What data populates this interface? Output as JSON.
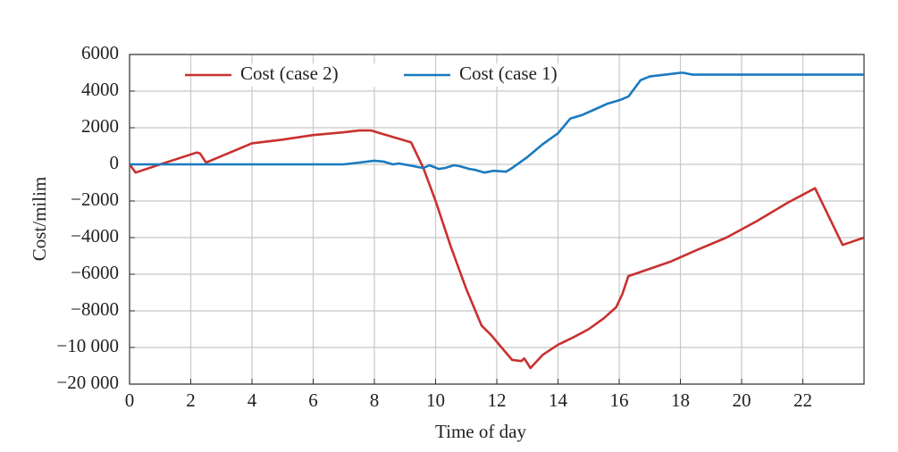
{
  "chart_data": {
    "type": "line",
    "xlabel": "Time of day",
    "ylabel": "Cost/milim",
    "xlim": [
      0,
      24
    ],
    "xticks": [
      0,
      2,
      4,
      6,
      8,
      10,
      12,
      14,
      16,
      18,
      20,
      22
    ],
    "ylim": [
      -20000,
      6000
    ],
    "yticks": [
      {
        "value": -20000,
        "label": "−20 000"
      },
      {
        "value": -10000,
        "label": "−10 000"
      },
      {
        "value": -8000,
        "label": "−8000"
      },
      {
        "value": -6000,
        "label": "−6000"
      },
      {
        "value": -4000,
        "label": "−4000"
      },
      {
        "value": -2000,
        "label": "−2000"
      },
      0,
      2000,
      4000,
      6000
    ],
    "grid": true,
    "legend": "top",
    "series": [
      {
        "name": "Cost (case 2)",
        "color": "#c8312f",
        "x": [
          0,
          0.2,
          1,
          2.2,
          2.3,
          2.5,
          4,
          5,
          6,
          7,
          7.5,
          7.9,
          8.2,
          9.2,
          9.6,
          10,
          10.5,
          11,
          11.5,
          11.8,
          12.5,
          12.8,
          12.9,
          13.1,
          13.5,
          14,
          14.5,
          15,
          15.5,
          15.9,
          16.1,
          16.3,
          17,
          17.7,
          18.5,
          19.5,
          20.5,
          21.5,
          22.4,
          23.3,
          24
        ],
        "values": [
          0,
          -450,
          0,
          650,
          600,
          100,
          1150,
          1350,
          1600,
          1750,
          1850,
          1850,
          1700,
          1200,
          -200,
          -2000,
          -4500,
          -6800,
          -8800,
          -9300,
          -13400,
          -13700,
          -13000,
          -15600,
          -12000,
          -9850,
          -9450,
          -9000,
          -8400,
          -7800,
          -7100,
          -6100,
          -5700,
          -5300,
          -4700,
          -4000,
          -3100,
          -2100,
          -1300,
          -4400,
          -4000
        ]
      },
      {
        "name": "Cost (case 1)",
        "color": "#1a7abf",
        "x": [
          0,
          7,
          7.5,
          8,
          8.3,
          8.6,
          8.8,
          9.3,
          9.6,
          9.8,
          10.1,
          10.3,
          10.6,
          10.8,
          11.1,
          11.3,
          11.6,
          11.9,
          12.3,
          12.5,
          13,
          13.5,
          14,
          14.2,
          14.4,
          14.8,
          15.2,
          15.6,
          16,
          16.3,
          16.7,
          17,
          17.5,
          18,
          18.1,
          18.4,
          24
        ],
        "values": [
          0,
          0,
          100,
          200,
          150,
          0,
          50,
          -100,
          -200,
          -50,
          -250,
          -200,
          -50,
          -100,
          -250,
          -300,
          -450,
          -350,
          -400,
          -200,
          400,
          1100,
          1700,
          2100,
          2500,
          2700,
          3000,
          3300,
          3500,
          3700,
          4600,
          4800,
          4900,
          5000,
          5000,
          4900,
          4900
        ]
      }
    ]
  }
}
